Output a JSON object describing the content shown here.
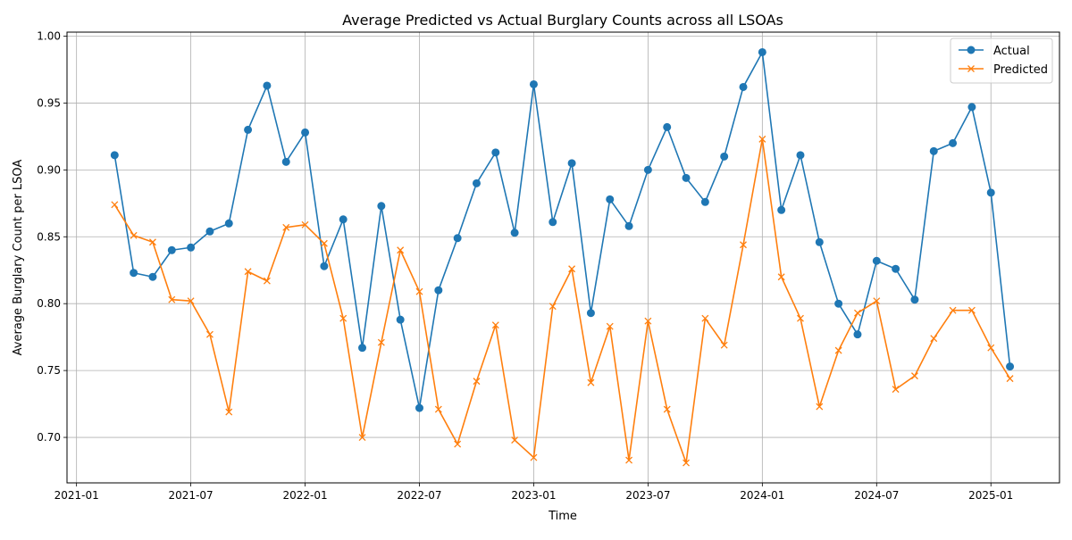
{
  "chart_data": {
    "type": "line",
    "title": "Average Predicted vs Actual Burglary Counts across all LSOAs",
    "xlabel": "Time",
    "ylabel": "Average Burglary Count per LSOA",
    "x": [
      "2021-03",
      "2021-04",
      "2021-05",
      "2021-06",
      "2021-07",
      "2021-08",
      "2021-09",
      "2021-10",
      "2021-11",
      "2021-12",
      "2022-01",
      "2022-02",
      "2022-03",
      "2022-04",
      "2022-05",
      "2022-06",
      "2022-07",
      "2022-08",
      "2022-09",
      "2022-10",
      "2022-11",
      "2022-12",
      "2023-01",
      "2023-02",
      "2023-03",
      "2023-04",
      "2023-05",
      "2023-06",
      "2023-07",
      "2023-08",
      "2023-09",
      "2023-10",
      "2023-11",
      "2023-12",
      "2024-01",
      "2024-02",
      "2024-03",
      "2024-04",
      "2024-05",
      "2024-06",
      "2024-07",
      "2024-08",
      "2024-09",
      "2024-10",
      "2024-11",
      "2024-12",
      "2025-01",
      "2025-02"
    ],
    "series": [
      {
        "name": "Actual",
        "color": "#1f77b4",
        "marker": "circle",
        "values": [
          0.911,
          0.823,
          0.82,
          0.84,
          0.842,
          0.854,
          0.86,
          0.93,
          0.963,
          0.906,
          0.928,
          0.828,
          0.863,
          0.767,
          0.873,
          0.788,
          0.722,
          0.81,
          0.849,
          0.89,
          0.913,
          0.853,
          0.964,
          0.861,
          0.905,
          0.793,
          0.878,
          0.858,
          0.9,
          0.932,
          0.894,
          0.876,
          0.91,
          0.962,
          0.988,
          0.87,
          0.911,
          0.846,
          0.8,
          0.777,
          0.832,
          0.826,
          0.803,
          0.914,
          0.92,
          0.947,
          0.883,
          0.753
        ]
      },
      {
        "name": "Predicted",
        "color": "#ff7f0e",
        "marker": "x",
        "values": [
          0.874,
          0.851,
          0.846,
          0.803,
          0.802,
          0.777,
          0.719,
          0.824,
          0.817,
          0.857,
          0.859,
          0.845,
          0.789,
          0.7,
          0.771,
          0.84,
          0.809,
          0.721,
          0.695,
          0.742,
          0.784,
          0.698,
          0.685,
          0.798,
          0.826,
          0.741,
          0.783,
          0.683,
          0.787,
          0.721,
          0.681,
          0.789,
          0.769,
          0.844,
          0.923,
          0.82,
          0.789,
          0.723,
          0.765,
          0.793,
          0.802,
          0.736,
          0.746,
          0.774,
          0.795,
          0.795,
          0.767,
          0.744
        ]
      }
    ],
    "x_ticks": [
      "2021-01",
      "2021-07",
      "2022-01",
      "2022-07",
      "2023-01",
      "2023-07",
      "2024-01",
      "2024-07",
      "2025-01"
    ],
    "y_ticks": [
      "0.70",
      "0.75",
      "0.80",
      "0.85",
      "0.90",
      "0.95",
      "1.00"
    ],
    "xlim": [
      "2020-12",
      "2025-04"
    ],
    "ylim": [
      0.666,
      1.003
    ],
    "grid": true,
    "legend_position": "top-right",
    "background": "#ffffff",
    "grid_color": "#b0b0b0"
  }
}
